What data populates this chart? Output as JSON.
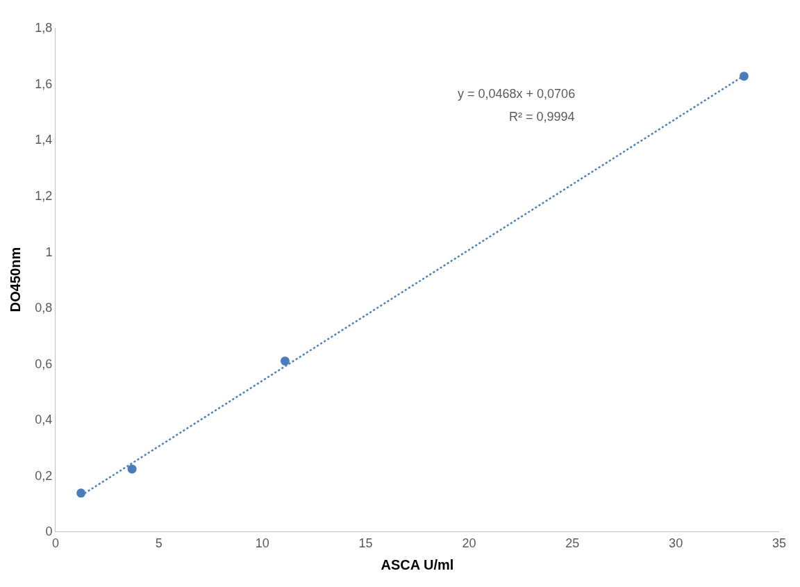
{
  "chart_data": {
    "type": "scatter",
    "xlabel": "ASCA U/ml",
    "ylabel": "DO450nm",
    "series": [
      {
        "color": "#4a7ebb",
        "x": [
          1.23,
          3.7,
          11.1,
          33.3
        ],
        "values": [
          0.137,
          0.223,
          0.609,
          1.627
        ],
        "marker": "circle"
      },
      {
        "type": "line",
        "color": "#4a7ebb",
        "x": [
          1.23,
          33.3
        ],
        "values": [
          0.128,
          1.629
        ],
        "line_style": "dotted",
        "marker": "none"
      }
    ],
    "annotations": [
      "y = 0,0468x + 0,0706",
      "R² = 0,9994"
    ],
    "xlim": [
      0,
      35
    ],
    "xticks": [
      0,
      5,
      10,
      15,
      20,
      25,
      30,
      35
    ],
    "ylim": [
      0,
      1.8
    ],
    "yticks": [
      0,
      {
        "value": 0.2,
        "label": "0,2"
      },
      {
        "value": 0.4,
        "label": "0,4"
      },
      {
        "value": 0.6,
        "label": "0,6"
      },
      {
        "value": 0.8,
        "label": "0,8"
      },
      1,
      {
        "value": 1.2,
        "label": "1,2"
      },
      {
        "value": 1.4,
        "label": "1,4"
      },
      {
        "value": 1.6,
        "label": "1,6"
      },
      {
        "value": 1.8,
        "label": "1,8"
      }
    ]
  }
}
